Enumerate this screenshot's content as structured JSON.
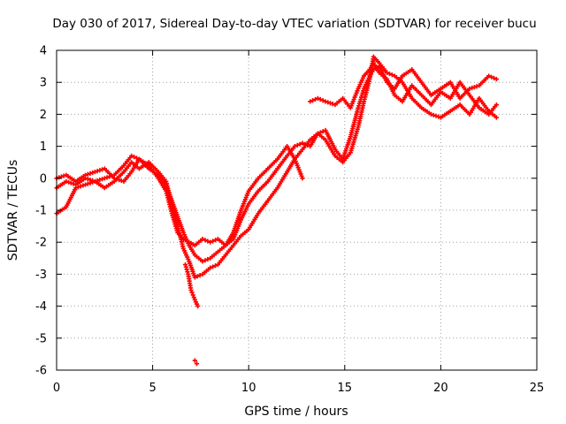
{
  "chart_data": {
    "type": "scatter",
    "title": "Day 030 of 2017, Sidereal Day-to-day VTEC variation (SDTVAR) for receiver bucu",
    "xlabel": "GPS time / hours",
    "ylabel": "SDTVAR / TECUs",
    "xlim": [
      0,
      25
    ],
    "ylim": [
      -6,
      4
    ],
    "xticks": [
      0,
      5,
      10,
      15,
      20,
      25
    ],
    "yticks": [
      -6,
      -5,
      -4,
      -3,
      -2,
      -1,
      0,
      1,
      2,
      3,
      4
    ],
    "xtick_labels": [
      "0",
      "5",
      "10",
      "15",
      "20",
      "25"
    ],
    "ytick_labels": [
      "-6",
      "-5",
      "-4",
      "-3",
      "-2",
      "-1",
      "0",
      "1",
      "2",
      "3",
      "4"
    ],
    "grid": true,
    "marker": "plus",
    "color": "#ff0000",
    "series": [
      {
        "x": [
          0.0,
          0.5,
          1.0,
          1.5,
          2.0,
          2.5,
          3.0,
          3.5,
          3.9,
          4.3,
          4.8,
          5.3,
          5.7,
          6.0,
          6.3,
          6.6,
          6.9,
          7.2,
          7.6,
          8.0,
          8.4,
          8.8,
          9.2,
          9.6,
          10.0,
          10.5,
          11.0,
          11.5,
          12.0,
          12.4,
          12.8,
          13.2,
          13.6,
          14.0,
          14.5,
          14.9,
          15.3,
          15.7,
          16.0,
          16.3,
          16.5,
          16.8,
          17.2,
          17.6,
          18.0,
          18.5,
          19.0,
          19.5,
          20.0,
          20.5,
          21.0,
          21.5,
          22.0,
          22.5,
          22.9
        ],
        "y": [
          -1.1,
          -0.9,
          -0.3,
          -0.2,
          -0.1,
          -0.3,
          -0.1,
          0.2,
          0.5,
          0.3,
          0.5,
          0.2,
          -0.1,
          -0.8,
          -1.5,
          -2.2,
          -2.6,
          -3.1,
          -3.0,
          -2.8,
          -2.7,
          -2.4,
          -2.1,
          -1.8,
          -1.6,
          -1.1,
          -0.7,
          -0.3,
          0.2,
          0.6,
          0.9,
          1.2,
          1.4,
          1.2,
          0.7,
          0.5,
          0.8,
          1.6,
          2.4,
          3.1,
          3.8,
          3.6,
          3.3,
          3.2,
          3.0,
          2.5,
          2.2,
          2.0,
          1.9,
          2.1,
          2.3,
          2.0,
          2.5,
          2.1,
          1.9
        ]
      },
      {
        "x": [
          0.0,
          0.5,
          1.0,
          1.5,
          2.0,
          2.5,
          3.0,
          3.5,
          3.9,
          4.3,
          4.8,
          5.3,
          5.7,
          6.0,
          6.3,
          6.6,
          6.9,
          7.2,
          7.6,
          8.0,
          8.4,
          8.8,
          9.2,
          9.6,
          10.0,
          10.5,
          11.0,
          11.5,
          12.0,
          12.4,
          12.8,
          13.2,
          13.6,
          14.0,
          14.5,
          14.9,
          15.3,
          15.7,
          16.0,
          16.3,
          16.5,
          16.8,
          17.2,
          17.6,
          18.0,
          18.5,
          19.0,
          19.5,
          20.0,
          20.5,
          21.0,
          21.5,
          22.0,
          22.5,
          22.9
        ],
        "y": [
          -0.3,
          -0.1,
          -0.2,
          0.0,
          -0.1,
          0.0,
          0.1,
          0.4,
          0.7,
          0.6,
          0.3,
          0.1,
          -0.2,
          -0.7,
          -1.2,
          -1.7,
          -2.1,
          -2.4,
          -2.6,
          -2.5,
          -2.3,
          -2.1,
          -1.9,
          -1.3,
          -0.8,
          -0.4,
          -0.1,
          0.3,
          0.7,
          1.0,
          1.1,
          1.0,
          1.4,
          1.5,
          0.9,
          0.6,
          1.3,
          2.2,
          2.8,
          3.2,
          3.4,
          3.5,
          3.0,
          2.8,
          3.2,
          3.4,
          3.0,
          2.6,
          2.8,
          3.0,
          2.5,
          2.8,
          2.9,
          3.2,
          3.1
        ]
      },
      {
        "x": [
          0.0,
          0.5,
          1.0,
          1.5,
          2.0,
          2.5,
          3.0,
          3.5,
          3.9,
          4.3,
          4.8,
          5.3,
          5.7,
          6.0,
          6.3,
          6.6,
          6.9,
          7.2,
          7.6,
          8.0,
          8.4,
          8.8,
          9.2,
          9.6,
          10.0,
          10.5,
          11.0,
          11.5,
          12.0,
          12.4,
          12.8,
          13.2,
          13.6,
          14.0,
          14.5,
          14.9,
          15.3,
          15.7,
          16.0,
          16.3,
          16.5,
          16.8,
          17.2,
          17.6,
          18.0,
          18.5,
          19.0,
          19.5,
          20.0,
          20.5,
          21.0,
          21.5,
          22.0,
          22.5,
          22.9
        ],
        "y": [
          0.0,
          0.1,
          -0.1,
          0.1,
          0.2,
          0.3,
          0.0,
          -0.1,
          0.2,
          0.6,
          0.4,
          0.0,
          -0.4,
          -1.1,
          -1.7,
          -1.9,
          -2.0,
          -2.1,
          -1.9,
          -2.0,
          -1.9,
          -2.1,
          -1.7,
          -1.0,
          -0.4,
          0.0,
          0.3,
          0.6,
          1.0,
          0.6,
          0.0,
          2.4,
          2.5,
          2.4,
          2.3,
          2.5,
          2.2,
          2.8,
          3.2,
          3.4,
          3.6,
          3.3,
          3.1,
          2.6,
          2.4,
          2.9,
          2.6,
          2.3,
          2.7,
          2.5,
          3.0,
          2.6,
          2.2,
          2.0,
          2.3
        ]
      },
      {
        "x": [
          6.7,
          6.85,
          7.0,
          7.2,
          7.35,
          7.2,
          7.3
        ],
        "y": [
          -2.7,
          -3.0,
          -3.5,
          -3.8,
          -4.0,
          -5.7,
          -5.8
        ]
      }
    ]
  }
}
